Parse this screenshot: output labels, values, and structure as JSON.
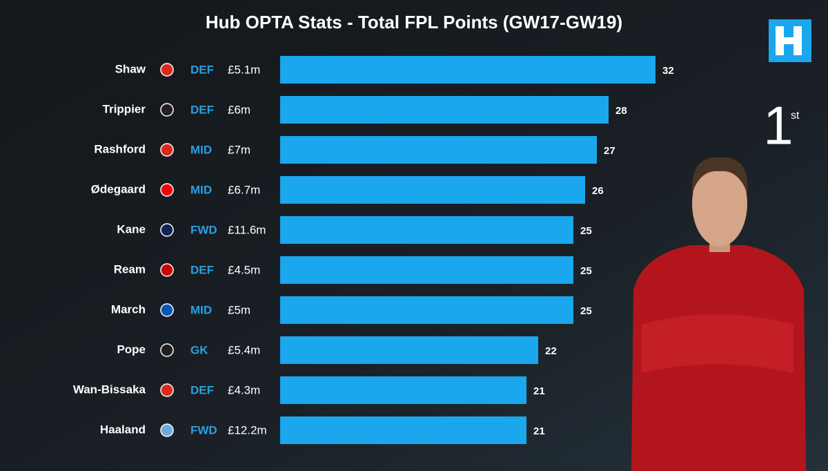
{
  "chart_data": {
    "type": "bar",
    "orientation": "horizontal",
    "title": "Hub OPTA Stats - Total FPL Points (GW17-GW19)",
    "categories": [
      "Shaw",
      "Trippier",
      "Rashford",
      "Ødegaard",
      "Kane",
      "Ream",
      "March",
      "Pope",
      "Wan-Bissaka",
      "Haaland"
    ],
    "positions": [
      "DEF",
      "DEF",
      "MID",
      "MID",
      "FWD",
      "DEF",
      "MID",
      "GK",
      "DEF",
      "FWD"
    ],
    "prices": [
      "£5.1m",
      "£6m",
      "£7m",
      "£6.7m",
      "£11.6m",
      "£4.5m",
      "£5m",
      "£5.4m",
      "£4.3m",
      "£12.2m"
    ],
    "values": [
      32,
      28,
      27,
      26,
      25,
      25,
      25,
      22,
      21,
      21
    ],
    "color": "#1aa7ee",
    "rank": "1",
    "rank_suffix": "st"
  }
}
